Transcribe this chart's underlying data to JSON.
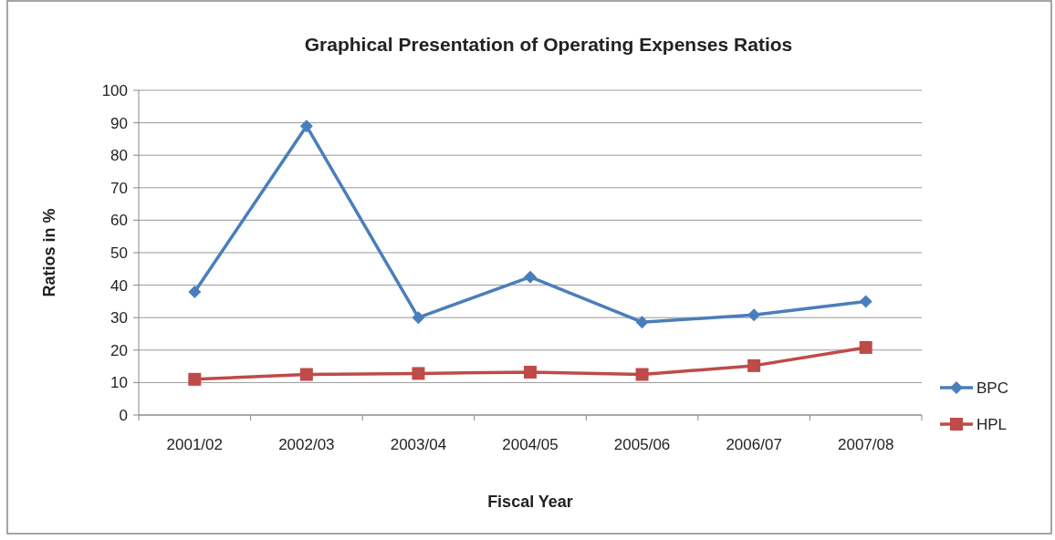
{
  "chart_data": {
    "type": "line",
    "title": "Graphical Presentation of Operating Expenses Ratios",
    "xlabel": "Fiscal Year",
    "ylabel": "Ratios in %",
    "categories": [
      "2001/02",
      "2002/03",
      "2003/04",
      "2004/05",
      "2005/06",
      "2006/07",
      "2007/08"
    ],
    "series": [
      {
        "name": "BPC",
        "color": "#4a7ebb",
        "marker": "diamond",
        "values": [
          37.9,
          89,
          30,
          42.5,
          28.6,
          30.8,
          35
        ]
      },
      {
        "name": "HPL",
        "color": "#be4b48",
        "marker": "square",
        "values": [
          11,
          12.5,
          12.8,
          13.2,
          12.5,
          15.2,
          20.8
        ]
      }
    ],
    "ylim": [
      0,
      100
    ],
    "yticks": [
      0,
      10,
      20,
      30,
      40,
      50,
      60,
      70,
      80,
      90,
      100
    ],
    "grid": "y",
    "legend": "right"
  }
}
